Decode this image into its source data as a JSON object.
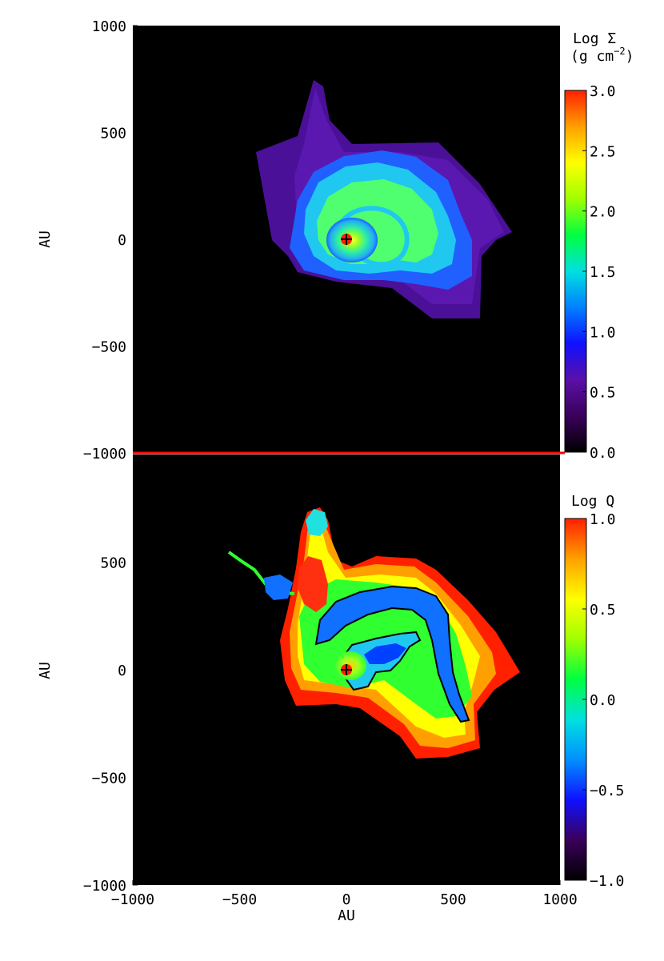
{
  "chart_data": [
    {
      "type": "heatmap",
      "panel": "top",
      "quantity": "surface density",
      "ylabel": "AU",
      "xlim": [
        -1000,
        1000
      ],
      "ylim": [
        -1000,
        1000
      ],
      "y_ticks": [
        1000,
        500,
        0,
        -500,
        -1000
      ],
      "y_tick_labels": [
        "1000",
        "500",
        "0",
        "−500",
        "−1000"
      ],
      "colorbar": {
        "title_line1": "Log Σ",
        "title_line2": "(g cm",
        "title_exp": "−2",
        "title_close": ")",
        "range": [
          0.0,
          3.0
        ],
        "ticks": [
          0.0,
          0.5,
          1.0,
          1.5,
          2.0,
          2.5,
          3.0
        ],
        "tick_labels": [
          "0.0",
          "0.5",
          "1.0",
          "1.5",
          "2.0",
          "2.5",
          "3.0"
        ],
        "colormap": [
          "#000000",
          "#3a005a",
          "#5a10a8",
          "#1010ff",
          "#0080ff",
          "#00e0e0",
          "#00ff40",
          "#a0ff00",
          "#ffff00",
          "#ffa000",
          "#ff2000"
        ]
      },
      "features": {
        "background": "#000000",
        "disk_outer_color": "#5a18b0",
        "disk_mid_color": "#20c8f0",
        "disk_inner_color": "#70ff20",
        "core_color": "#ffff40",
        "central_object": "plus-marker at origin",
        "central_object_xy": [
          0,
          0
        ]
      }
    },
    {
      "type": "heatmap",
      "panel": "bottom",
      "quantity": "Toomre Q",
      "xlabel": "AU",
      "ylabel": "AU",
      "xlim": [
        -1000,
        1000
      ],
      "ylim": [
        -1000,
        1000
      ],
      "x_ticks": [
        -1000,
        -500,
        0,
        500,
        1000
      ],
      "x_tick_labels": [
        "−1000",
        "−500",
        "0",
        "500",
        "1000"
      ],
      "y_ticks": [
        500,
        0,
        -500,
        -1000
      ],
      "y_tick_labels": [
        "500",
        "0",
        "−500",
        "−1000"
      ],
      "colorbar": {
        "title_line1": "Log Q",
        "range": [
          -1.0,
          1.0
        ],
        "ticks": [
          -1.0,
          -0.5,
          0.0,
          0.5,
          1.0
        ],
        "tick_labels": [
          "−1.0",
          "−0.5",
          "0.0",
          "0.5",
          "1.0"
        ],
        "colormap": [
          "#000000",
          "#3a005a",
          "#1010ff",
          "#0090ff",
          "#00e0e0",
          "#00ff40",
          "#a0ff00",
          "#ffff00",
          "#ffa000",
          "#ff2000"
        ]
      },
      "features": {
        "background": "#000000",
        "outer_edge_color": "#ff2000",
        "disk_body_color": "#30ff30",
        "spiral_arm_color": "#1070ff",
        "contour": "black contour at Q = 1",
        "central_object": "plus-marker at origin",
        "central_object_xy": [
          0,
          0
        ]
      }
    }
  ],
  "separator_color": "#ff0000"
}
